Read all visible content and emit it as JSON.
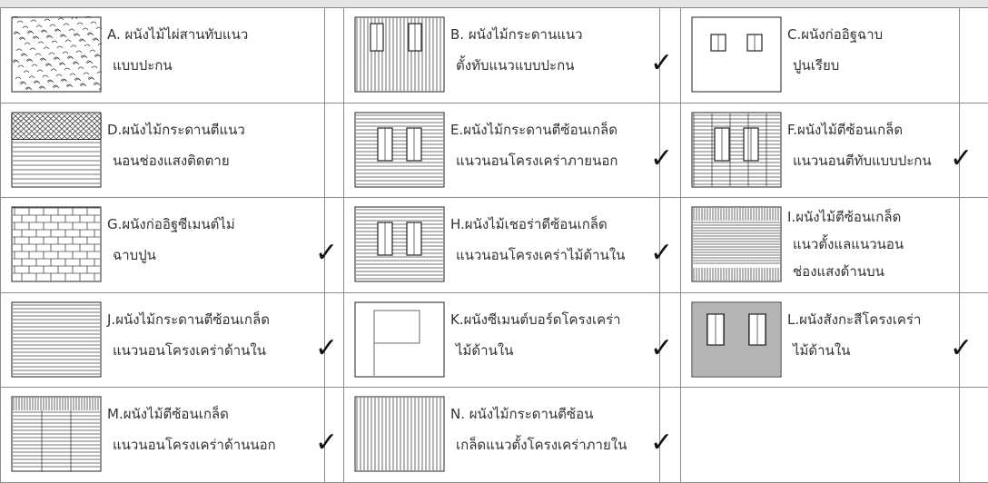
{
  "table": {
    "rows": [
      [
        {
          "lines": [
            "A. ผนังไม้ไผ่สานทับแนว",
            "แบบปะกน"
          ]
        },
        {
          "lines": [
            "B. ผนังไม้กระดานแนว",
            "ตั้งทับแนวแบบปะกน"
          ],
          "check": "✓"
        },
        {
          "lines": [
            "C.ผนังก่ออิฐฉาบ",
            "ปูนเรียบ"
          ]
        }
      ],
      [
        {
          "lines": [
            "D.ผนังไม้กระดานตีแนว",
            "นอนช่องแสงติดตาย"
          ]
        },
        {
          "lines": [
            "E.ผนังไม้กระดานตีซ้อนเกล็ด",
            "แนวนอนโครงเคร่าภายนอก"
          ],
          "check": "✓"
        },
        {
          "lines": [
            "F.ผนังไม้ตีซ้อนเกล็ด",
            "แนวนอนตีทับแบบปะกน"
          ],
          "check": "✓"
        }
      ],
      [
        {
          "lines": [
            "G.ผนังก่ออิฐซีเมนต์ไม่",
            "ฉาบปูน"
          ],
          "check": "✓"
        },
        {
          "lines": [
            "H.ผนังไม้เชอร่าตีซ้อนเกล็ด",
            "แนวนอนโครงเคร่าไม้ด้านใน"
          ],
          "check": "✓"
        },
        {
          "lines": [
            "I.ผนังไม้ตีซ้อนเกล็ด",
            "แนวตั้งแลแนวนอน",
            "ช่องแสงด้านบน"
          ]
        }
      ],
      [
        {
          "lines": [
            "J.ผนังไม้กระดานตีซ้อนเกล็ด",
            "แนวนอนโครงเคร่าด้านใน"
          ],
          "check": "✓"
        },
        {
          "lines": [
            "K.ผนังซีเมนต์บอร์ดโครงเคร่า",
            "ไม้ด้านใน"
          ],
          "check": "✓"
        },
        {
          "lines": [
            "L.ผนังสังกะสีโครงเคร่า",
            "ไม้ด้านใน"
          ],
          "check": "✓"
        }
      ],
      [
        {
          "lines": [
            "M.ผนังไม้ตีซ้อนเกล็ด",
            "แนวนอนโครงเคร่าด้านนอก"
          ],
          "check": "✓"
        },
        {
          "lines": [
            "N. ผนังไม้กระดานตีซ้อน",
            "เกล็ดแนวตั้งโครงเคร่าภายใน"
          ],
          "check": "✓"
        },
        null
      ]
    ]
  }
}
